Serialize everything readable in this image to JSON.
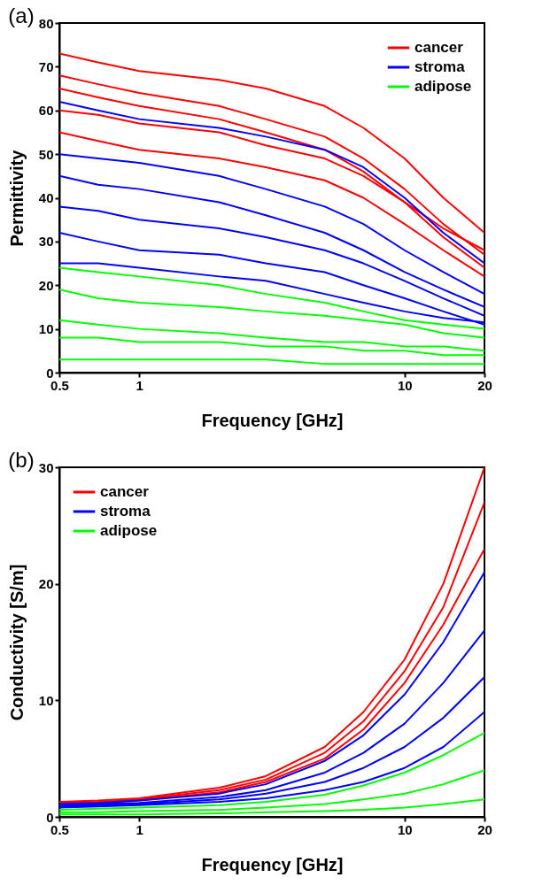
{
  "chart_data": [
    {
      "type": "line",
      "title": "(a)",
      "xlabel": "Frequency [GHz]",
      "ylabel": "Permittivity",
      "log": "x",
      "grid": false,
      "legend": "top right",
      "x": [
        0.5,
        0.7,
        1,
        2,
        3,
        5,
        7,
        10,
        14,
        20
      ],
      "xlim": [
        0.5,
        20
      ],
      "xticks": [
        0.5,
        1,
        10,
        20
      ],
      "ylim": [
        0,
        80
      ],
      "yticks": [
        0,
        10,
        20,
        30,
        40,
        50,
        60,
        70,
        80
      ],
      "series": [
        {
          "name": "cancer",
          "color": "#ff0000",
          "values": [
            73,
            71,
            69,
            67,
            65,
            61,
            56,
            49,
            40,
            32
          ]
        },
        {
          "color": "#ff0000",
          "values": [
            68,
            66,
            64,
            61,
            58,
            54,
            49,
            42,
            34,
            27
          ]
        },
        {
          "color": "#ff0000",
          "values": [
            65,
            63,
            61,
            58,
            55,
            51,
            46,
            39,
            31,
            24
          ]
        },
        {
          "color": "#ff0000",
          "values": [
            60,
            59,
            57,
            55,
            52,
            49,
            45,
            39,
            33,
            28
          ]
        },
        {
          "color": "#ff0000",
          "values": [
            55,
            53,
            51,
            49,
            47,
            44,
            40,
            34,
            28,
            22
          ]
        },
        {
          "name": "stroma",
          "color": "#0000ff",
          "values": [
            62,
            60,
            58,
            56,
            54,
            51,
            47,
            40,
            32,
            25
          ]
        },
        {
          "color": "#0000ff",
          "values": [
            50,
            49,
            48,
            45,
            42,
            38,
            34,
            28,
            23,
            18
          ]
        },
        {
          "color": "#0000ff",
          "values": [
            45,
            43,
            42,
            39,
            36,
            32,
            28,
            23,
            19,
            15
          ]
        },
        {
          "color": "#0000ff",
          "values": [
            38,
            37,
            35,
            33,
            31,
            28,
            25,
            21,
            17,
            13
          ]
        },
        {
          "color": "#0000ff",
          "values": [
            32,
            30,
            28,
            27,
            25,
            23,
            20,
            17,
            14,
            11
          ]
        },
        {
          "color": "#0000ff",
          "values": [
            25,
            25,
            24,
            22,
            21,
            18,
            16,
            14,
            12.5,
            11.5
          ]
        },
        {
          "name": "adipose",
          "color": "#00ff00",
          "values": [
            24,
            23,
            22,
            20,
            18,
            16,
            14,
            12,
            11,
            10
          ]
        },
        {
          "color": "#00ff00",
          "values": [
            19,
            17,
            16,
            15,
            14,
            13,
            12,
            11,
            9,
            8
          ]
        },
        {
          "color": "#00ff00",
          "values": [
            12,
            11,
            10,
            9,
            8,
            7,
            7,
            6,
            6,
            5
          ]
        },
        {
          "color": "#00ff00",
          "values": [
            8,
            8,
            7,
            7,
            6,
            6,
            5,
            5,
            4,
            4
          ]
        },
        {
          "color": "#00ff00",
          "values": [
            3,
            3,
            3,
            3,
            3,
            2,
            2,
            2,
            2,
            2
          ]
        }
      ]
    },
    {
      "type": "line",
      "title": "(b)",
      "xlabel": "Frequency [GHz]",
      "ylabel": "Conductivity [S/m]",
      "log": "x",
      "grid": false,
      "legend": "top left",
      "x": [
        0.5,
        0.7,
        1,
        2,
        3,
        5,
        7,
        10,
        14,
        20
      ],
      "xlim": [
        0.5,
        20
      ],
      "xticks": [
        0.5,
        1,
        10,
        20
      ],
      "ylim": [
        0,
        30
      ],
      "yticks": [
        0,
        10,
        20,
        30
      ],
      "series": [
        {
          "name": "cancer",
          "color": "#ff0000",
          "values": [
            1.3,
            1.4,
            1.6,
            2.5,
            3.5,
            6,
            9,
            13.5,
            20,
            30
          ]
        },
        {
          "color": "#ff0000",
          "values": [
            1.2,
            1.3,
            1.5,
            2.3,
            3.2,
            5.5,
            8.2,
            12.5,
            18,
            27
          ]
        },
        {
          "color": "#ff0000",
          "values": [
            1.1,
            1.2,
            1.4,
            2.1,
            3,
            5,
            7.5,
            11.5,
            16.5,
            23
          ]
        },
        {
          "name": "stroma",
          "color": "#0000ff",
          "values": [
            1.1,
            1.2,
            1.4,
            2,
            2.8,
            4.8,
            7,
            10.5,
            15,
            21
          ]
        },
        {
          "color": "#0000ff",
          "values": [
            1,
            1.1,
            1.2,
            1.7,
            2.3,
            3.8,
            5.5,
            8,
            11.5,
            16
          ]
        },
        {
          "color": "#0000ff",
          "values": [
            0.9,
            1,
            1.1,
            1.5,
            2,
            3,
            4.2,
            6,
            8.5,
            12
          ]
        },
        {
          "color": "#0000ff",
          "values": [
            0.8,
            0.9,
            1,
            1.3,
            1.6,
            2.3,
            3,
            4.2,
            6,
            9
          ]
        },
        {
          "name": "adipose",
          "color": "#00ff00",
          "values": [
            0.6,
            0.7,
            0.8,
            1,
            1.3,
            1.9,
            2.7,
            3.8,
            5.3,
            7.2
          ]
        },
        {
          "color": "#00ff00",
          "values": [
            0.4,
            0.4,
            0.5,
            0.6,
            0.8,
            1.1,
            1.5,
            2,
            2.8,
            4
          ]
        },
        {
          "color": "#00ff00",
          "values": [
            0.2,
            0.2,
            0.2,
            0.3,
            0.4,
            0.5,
            0.6,
            0.8,
            1.1,
            1.5
          ]
        }
      ]
    }
  ]
}
